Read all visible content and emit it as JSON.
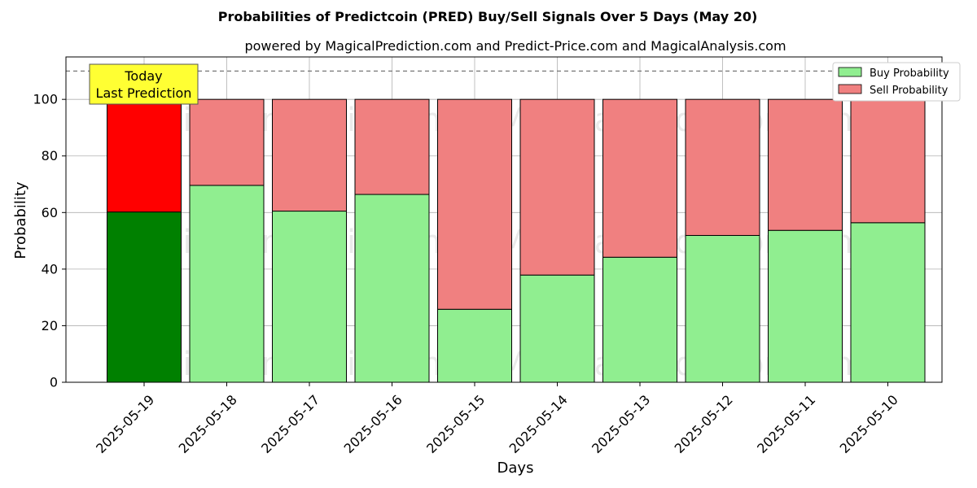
{
  "chart_data": {
    "type": "bar",
    "stacked": true,
    "title": "Probabilities of Predictcoin (PRED) Buy/Sell Signals Over 5 Days (May 20)",
    "subtitle": "powered by MagicalPrediction.com and Predict-Price.com and MagicalAnalysis.com",
    "xlabel": "Days",
    "ylabel": "Probability",
    "ylim": [
      0,
      115
    ],
    "yticks": [
      "0",
      "20",
      "40",
      "60",
      "80",
      "100"
    ],
    "grid": true,
    "legend_position": "top-right",
    "categories": [
      "2025-05-19",
      "2025-05-18",
      "2025-05-17",
      "2025-05-16",
      "2025-05-15",
      "2025-05-14",
      "2025-05-13",
      "2025-05-12",
      "2025-05-11",
      "2025-05-10"
    ],
    "series": [
      {
        "name": "Buy Probability",
        "color": "#90ee90",
        "highlight_color": "#008000",
        "values": [
          60.2,
          69.6,
          60.5,
          66.4,
          25.8,
          37.9,
          44.2,
          51.9,
          53.7,
          56.4
        ]
      },
      {
        "name": "Sell Probability",
        "color": "#f08080",
        "highlight_color": "#ff0000",
        "values": [
          39.8,
          30.4,
          39.5,
          33.6,
          74.2,
          62.1,
          55.8,
          48.1,
          46.3,
          43.6
        ]
      }
    ],
    "reference_line": {
      "y": 110
    },
    "annotation": {
      "line1": "Today",
      "line2": "Last Prediction"
    },
    "watermarks": [
      "MagicalAnalysis.com",
      "MagicalPrediction.com"
    ]
  }
}
